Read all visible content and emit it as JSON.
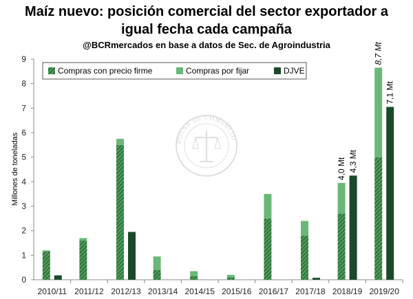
{
  "chart_data": {
    "type": "bar",
    "title_line1": "Maíz nuevo: posición comercial del sector exportador a",
    "title_line2": "igual fecha cada campaña",
    "subtitle": "@BCRmercados en base a datos de Sec. de Agroindustria",
    "ylabel": "Millones de toneladas",
    "ylim": [
      0,
      9
    ],
    "yticks": [
      "0",
      "1",
      "2",
      "3",
      "4",
      "5",
      "6",
      "7",
      "8",
      "9"
    ],
    "categories": [
      "2010/11",
      "2011/12",
      "2012/13",
      "2013/14",
      "2014/15",
      "2015/16",
      "2016/17",
      "2017/18",
      "2018/19",
      "2019/20"
    ],
    "series": [
      {
        "name": "Compras con precio firme",
        "stack": "compras",
        "values": [
          1.15,
          1.6,
          5.5,
          0.4,
          0.15,
          0.1,
          2.5,
          1.8,
          2.7,
          5.0
        ]
      },
      {
        "name": "Compras por fijar",
        "stack": "compras",
        "values": [
          0.05,
          0.1,
          0.25,
          0.55,
          0.2,
          0.1,
          1.0,
          0.6,
          1.25,
          3.65
        ]
      },
      {
        "name": "DJVE",
        "stack": "djve",
        "values": [
          0.18,
          0,
          1.95,
          0,
          0,
          0,
          0,
          0.08,
          4.25,
          7.05
        ]
      }
    ],
    "annotations": [
      {
        "text": "4,0 Mt",
        "category": "2018/19",
        "stack": "compras",
        "value": 3.95
      },
      {
        "text": "4,3 Mt",
        "category": "2018/19",
        "stack": "djve",
        "value": 4.25
      },
      {
        "text": "8,7 Mt",
        "category": "2019/20",
        "stack": "compras",
        "value": 8.65,
        "italic": true
      },
      {
        "text": "7,1 Mt",
        "category": "2019/20",
        "stack": "djve",
        "value": 7.05
      }
    ],
    "legend_position": "top-left",
    "watermark": "BOLSA DE COMERCIO DE ROSARIO",
    "colors": {
      "firme": "#2e7d3c",
      "firme_stripe": "#a9cfa9",
      "por_fijar": "#6ab878",
      "djve": "#1b4a2a",
      "axis": "#888888"
    }
  }
}
